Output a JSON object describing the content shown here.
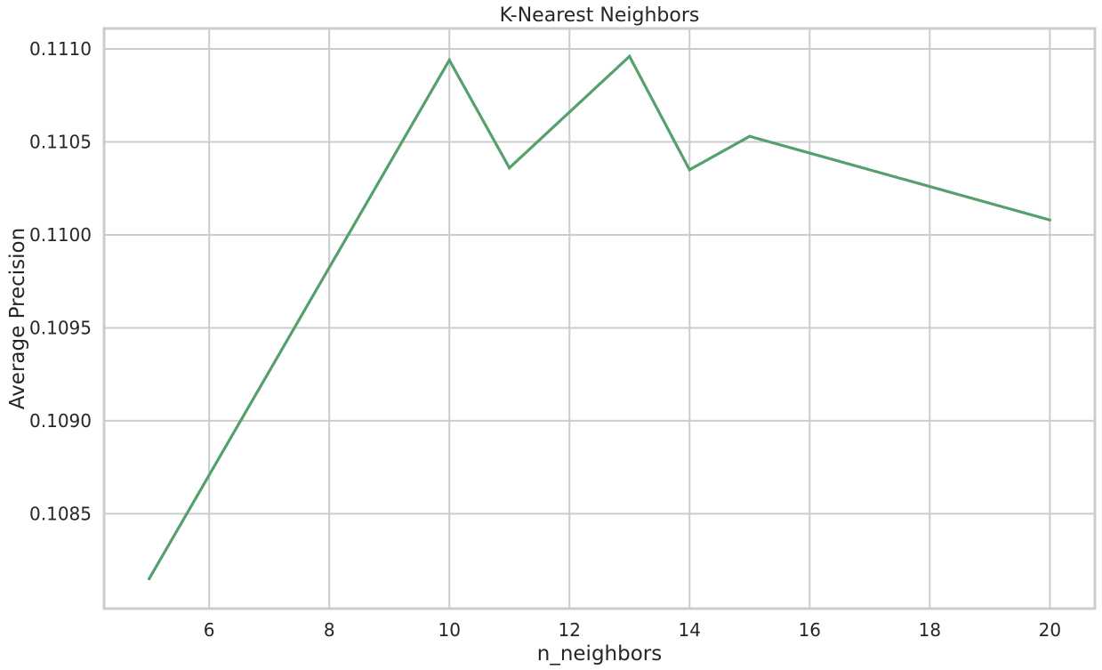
{
  "chart_data": {
    "type": "line",
    "title": "K-Nearest Neighbors",
    "xlabel": "n_neighbors",
    "ylabel": "Average Precision",
    "xlim": [
      4.25,
      20.75
    ],
    "ylim": [
      0.10799,
      0.11111
    ],
    "x_ticks": [
      6,
      8,
      10,
      12,
      14,
      16,
      18,
      20
    ],
    "y_ticks": [
      0.1085,
      0.109,
      0.1095,
      0.11,
      0.1105,
      0.111
    ],
    "x_tick_labels": [
      "6",
      "8",
      "10",
      "12",
      "14",
      "16",
      "18",
      "20"
    ],
    "y_tick_labels": [
      "0.1085",
      "0.1090",
      "0.1095",
      "0.1100",
      "0.1105",
      "0.1110"
    ],
    "grid": true,
    "series": [
      {
        "color": "#55a06d",
        "x": [
          5,
          10,
          11,
          13,
          14,
          15,
          20
        ],
        "y": [
          0.10815,
          0.11094,
          0.11036,
          0.11096,
          0.11035,
          0.11053,
          0.11008
        ]
      }
    ]
  },
  "colors": {
    "grid": "#cccccc",
    "frame": "#cccccc",
    "text": "#262626"
  }
}
